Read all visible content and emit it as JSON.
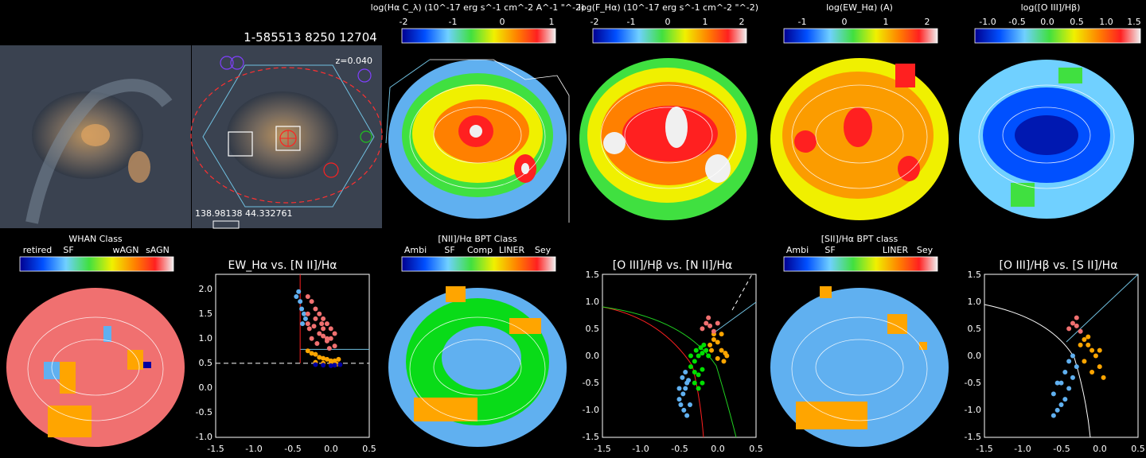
{
  "object_id": "1-585513 8250 12704",
  "redshift_label": "z=0.040",
  "coords_label": "138.98138 44.332761",
  "colorbars_top": [
    {
      "title": "log(Hα C_λ) (10^-17 erg s^-1 cm^-2 A^-1 \"^-2)",
      "ticks": [
        "-2",
        "-1",
        "0",
        "1"
      ]
    },
    {
      "title": "log(F_Hα) (10^-17 erg s^-1 cm^-2 \"^-2)",
      "ticks": [
        "-2",
        "-1",
        "0",
        "1",
        "2"
      ]
    },
    {
      "title": "log(EW_Hα) (A)",
      "ticks": [
        "-1",
        "0",
        "1",
        "2"
      ]
    },
    {
      "title": "log([O III]/Hβ)",
      "ticks": [
        "-1.0",
        "-0.5",
        "0.0",
        "0.5",
        "1.0",
        "1.5"
      ]
    }
  ],
  "colorbars_bottom": [
    {
      "title": "WHAN Class",
      "ticks": [
        "retired",
        "SF",
        "wAGN",
        "sAGN"
      ]
    },
    {
      "title": "[NII]/Hα BPT Class",
      "ticks": [
        "Ambi",
        "SF",
        "Comp",
        "LINER",
        "Sey"
      ]
    },
    {
      "title": "[SII]/Hα BPT class",
      "ticks": [
        "Ambi",
        "SF",
        "LINER",
        "Sey"
      ]
    }
  ],
  "class_colors": {
    "sf": "#60b0f0",
    "comp": "#00e000",
    "liner": "#ffa500",
    "sey": "#f07070",
    "ambi": "#0000a0"
  },
  "chart_data": [
    {
      "type": "scatter",
      "title": "EW_Hα vs. [N II]/Hα",
      "xlim": [
        -1.5,
        0.5
      ],
      "ylim": [
        -1.0,
        2.3
      ],
      "xticks": [
        "-1.5",
        "-1.0",
        "-0.5",
        "0.0",
        "0.5"
      ],
      "yticks": [
        "-1.0",
        "-0.5",
        "0.0",
        "0.5",
        "1.0",
        "1.5",
        "2.0"
      ],
      "series": [
        {
          "class": "sf",
          "x": [
            -0.45,
            -0.4,
            -0.38,
            -0.35,
            -0.42,
            -0.33,
            -0.37
          ],
          "y": [
            1.85,
            1.75,
            1.6,
            1.5,
            1.95,
            1.4,
            1.3
          ]
        },
        {
          "class": "sey",
          "x": [
            -0.3,
            -0.25,
            -0.2,
            -0.15,
            -0.1,
            -0.05,
            0.0,
            0.05,
            -0.3,
            -0.2,
            -0.1,
            0.0,
            -0.28,
            -0.15,
            -0.05,
            0.05,
            -0.25,
            -0.18,
            -0.1,
            -0.02,
            -0.3,
            -0.22,
            -0.12,
            -0.05
          ],
          "y": [
            1.85,
            1.75,
            1.6,
            1.5,
            1.4,
            1.3,
            1.2,
            1.1,
            1.5,
            1.4,
            1.2,
            1.0,
            1.2,
            1.1,
            0.95,
            0.85,
            1.0,
            0.9,
            1.05,
            0.8,
            1.3,
            1.25,
            1.3,
            1.0
          ]
        },
        {
          "class": "liner",
          "x": [
            -0.3,
            -0.25,
            -0.2,
            -0.15,
            -0.1,
            -0.05,
            0.0,
            0.05,
            0.1,
            -0.2,
            -0.1,
            0.0,
            0.08
          ],
          "y": [
            0.75,
            0.7,
            0.68,
            0.62,
            0.6,
            0.58,
            0.55,
            0.55,
            0.58,
            0.52,
            0.5,
            0.5,
            0.48
          ]
        },
        {
          "class": "ambi",
          "x": [
            -0.2,
            -0.1,
            0.0,
            0.05,
            0.12
          ],
          "y": [
            0.47,
            0.46,
            0.45,
            0.46,
            0.47
          ]
        }
      ]
    },
    {
      "type": "scatter",
      "title": "[O III]/Hβ vs. [N II]/Hα",
      "xlim": [
        -1.5,
        0.5
      ],
      "ylim": [
        -1.5,
        1.5
      ],
      "xticks": [
        "-1.5",
        "-1.0",
        "-0.5",
        "0.0",
        "0.5"
      ],
      "yticks": [
        "-1.5",
        "-1.0",
        "-0.5",
        "0.0",
        "0.5",
        "1.0",
        "1.5"
      ],
      "series": [
        {
          "class": "sf",
          "x": [
            -0.5,
            -0.45,
            -0.42,
            -0.4,
            -0.38,
            -0.48,
            -0.44,
            -0.4,
            -0.36,
            -0.5,
            -0.46,
            -0.42
          ],
          "y": [
            -0.8,
            -0.7,
            -0.6,
            -0.5,
            -0.45,
            -0.9,
            -1.0,
            -1.1,
            -0.9,
            -0.6,
            -0.4,
            -0.3
          ]
        },
        {
          "class": "comp",
          "x": [
            -0.35,
            -0.3,
            -0.25,
            -0.2,
            -0.15,
            -0.3,
            -0.25,
            -0.2,
            -0.35,
            -0.28,
            -0.22,
            -0.18,
            -0.12,
            -0.3,
            -0.25,
            -0.2
          ],
          "y": [
            -0.2,
            -0.1,
            0.0,
            0.05,
            0.1,
            -0.3,
            -0.35,
            -0.25,
            0.0,
            0.1,
            0.15,
            0.2,
            0.0,
            -0.5,
            -0.6,
            -0.5
          ]
        },
        {
          "class": "liner",
          "x": [
            -0.1,
            -0.05,
            0.0,
            0.05,
            0.1,
            -0.08,
            0.0,
            0.08,
            -0.05,
            0.05,
            0.12
          ],
          "y": [
            0.2,
            0.3,
            0.25,
            0.1,
            0.05,
            0.1,
            -0.05,
            -0.1,
            0.4,
            0.4,
            0.0
          ]
        },
        {
          "class": "sey",
          "x": [
            -0.2,
            -0.15,
            -0.1,
            -0.05,
            0.0,
            -0.12
          ],
          "y": [
            0.5,
            0.6,
            0.55,
            0.45,
            0.6,
            0.7
          ]
        }
      ]
    },
    {
      "type": "scatter",
      "title": "[O III]/Hβ vs. [S II]/Hα",
      "xlim": [
        -1.5,
        0.5
      ],
      "ylim": [
        -1.5,
        1.5
      ],
      "xticks": [
        "-1.5",
        "-1.0",
        "-0.5",
        "0.0",
        "0.5"
      ],
      "yticks": [
        "-1.5",
        "-1.0",
        "-0.5",
        "0.0",
        "0.5",
        "1.0",
        "1.5"
      ],
      "series": [
        {
          "class": "sf",
          "x": [
            -0.6,
            -0.55,
            -0.5,
            -0.45,
            -0.4,
            -0.35,
            -0.3,
            -0.5,
            -0.45,
            -0.4,
            -0.35,
            -0.6,
            -0.55
          ],
          "y": [
            -1.1,
            -1.0,
            -0.9,
            -0.8,
            -0.6,
            -0.4,
            -0.2,
            -0.5,
            -0.3,
            -0.1,
            0.0,
            -0.7,
            -0.5
          ]
        },
        {
          "class": "liner",
          "x": [
            -0.25,
            -0.2,
            -0.15,
            -0.1,
            -0.05,
            0.0,
            -0.2,
            -0.1,
            0.0,
            0.05,
            -0.15
          ],
          "y": [
            0.2,
            0.3,
            0.2,
            0.1,
            0.0,
            -0.2,
            -0.1,
            -0.3,
            0.1,
            -0.4,
            0.35
          ]
        },
        {
          "class": "sey",
          "x": [
            -0.4,
            -0.35,
            -0.3,
            -0.25,
            -0.3
          ],
          "y": [
            0.5,
            0.6,
            0.55,
            0.45,
            0.7
          ]
        }
      ]
    }
  ]
}
